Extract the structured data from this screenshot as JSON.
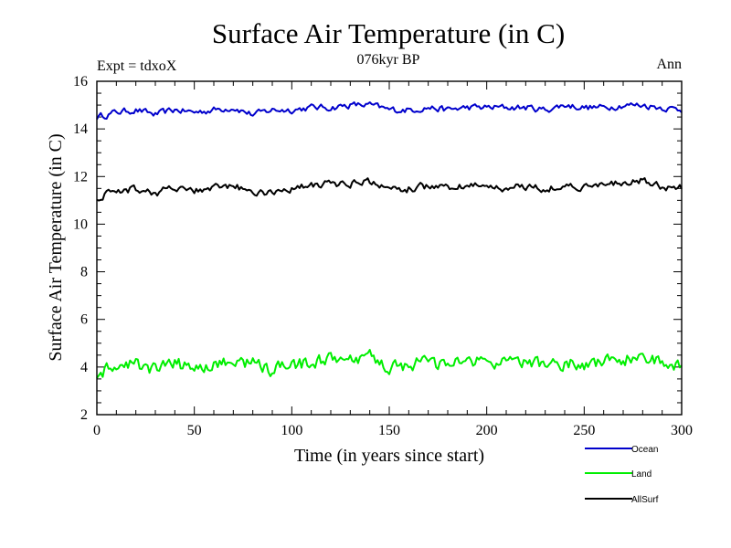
{
  "chart_data": {
    "type": "line",
    "title": "Surface Air Temperature (in C)",
    "subtitle": "076kyr BP",
    "left_label": "Expt = tdxoX",
    "right_label": "Ann",
    "xlabel": "Time (in years since start)",
    "ylabel": "Surface Air Temperature (in C)",
    "xlim": [
      0,
      300
    ],
    "ylim": [
      2,
      16
    ],
    "xticks": [
      0,
      50,
      100,
      150,
      200,
      250,
      300
    ],
    "yticks": [
      2,
      4,
      6,
      8,
      10,
      12,
      14,
      16
    ],
    "grid": false,
    "legend_position": "bottom-right",
    "series": [
      {
        "name": "Ocean",
        "color": "#0000cc",
        "mean": 14.85,
        "amplitude": 0.12,
        "x": [
          0,
          10,
          20,
          30,
          40,
          50,
          60,
          70,
          80,
          90,
          100,
          110,
          120,
          130,
          140,
          150,
          160,
          170,
          180,
          190,
          200,
          210,
          220,
          230,
          240,
          250,
          260,
          270,
          280,
          290,
          300
        ],
        "values": [
          14.5,
          14.7,
          14.8,
          14.6,
          14.8,
          14.7,
          14.8,
          14.9,
          14.6,
          14.8,
          14.8,
          14.9,
          14.9,
          15.0,
          15.0,
          14.8,
          14.8,
          14.9,
          14.8,
          14.9,
          14.9,
          14.9,
          14.9,
          14.8,
          15.0,
          14.9,
          14.9,
          15.0,
          15.0,
          14.9,
          14.8
        ]
      },
      {
        "name": "Land",
        "color": "#00ee00",
        "mean": 4.15,
        "amplitude": 0.25,
        "x": [
          0,
          10,
          20,
          30,
          40,
          50,
          60,
          70,
          80,
          90,
          100,
          110,
          120,
          130,
          140,
          150,
          160,
          170,
          180,
          190,
          200,
          210,
          220,
          230,
          240,
          250,
          260,
          270,
          280,
          290,
          300
        ],
        "values": [
          3.7,
          4.0,
          4.1,
          3.9,
          4.1,
          4.0,
          4.1,
          4.2,
          4.2,
          3.9,
          4.0,
          4.2,
          4.3,
          4.2,
          4.4,
          4.0,
          4.1,
          4.2,
          4.0,
          4.3,
          4.2,
          4.1,
          4.2,
          4.1,
          4.2,
          4.1,
          4.2,
          4.3,
          4.5,
          4.1,
          4.0
        ]
      },
      {
        "name": "AllSurf",
        "color": "#000000",
        "mean": 11.55,
        "amplitude": 0.14,
        "x": [
          0,
          10,
          20,
          30,
          40,
          50,
          60,
          70,
          80,
          90,
          100,
          110,
          120,
          130,
          140,
          150,
          160,
          170,
          180,
          190,
          200,
          210,
          220,
          230,
          240,
          250,
          260,
          270,
          280,
          290,
          300
        ],
        "values": [
          11.1,
          11.4,
          11.5,
          11.3,
          11.5,
          11.4,
          11.5,
          11.6,
          11.3,
          11.4,
          11.5,
          11.6,
          11.7,
          11.7,
          11.8,
          11.4,
          11.5,
          11.6,
          11.5,
          11.6,
          11.6,
          11.5,
          11.6,
          11.5,
          11.6,
          11.6,
          11.6,
          11.7,
          11.8,
          11.6,
          11.5
        ]
      }
    ]
  }
}
